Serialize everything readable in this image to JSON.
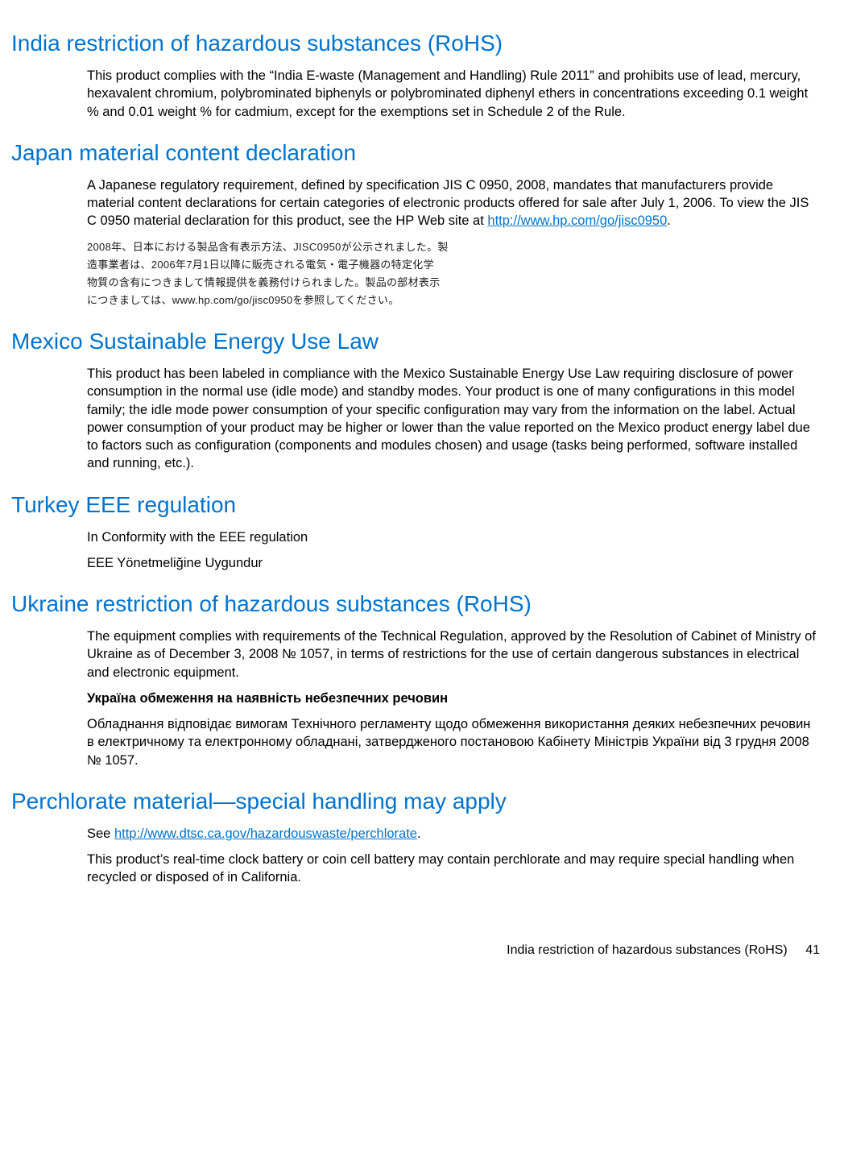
{
  "colors": {
    "heading": "#0073cf",
    "link": "#0073cf",
    "text": "#000000",
    "background": "#ffffff"
  },
  "typography": {
    "body_font": "Arial",
    "heading_fontsize": 28,
    "body_fontsize": 16.5,
    "japanese_fontsize": 13
  },
  "sections": {
    "india": {
      "heading": "India restriction of hazardous substances (RoHS)",
      "body": "This product complies with the “India E-waste (Management and Handling) Rule 2011” and prohibits use of lead, mercury, hexavalent chromium, polybrominated biphenyls or polybrominated diphenyl ethers in concentrations exceeding 0.1 weight % and 0.01 weight % for cadmium, except for the exemptions set in Schedule 2 of the Rule."
    },
    "japan": {
      "heading": "Japan material content declaration",
      "body_pre": "A Japanese regulatory requirement, defined by specification JIS C 0950, 2008, mandates that manufacturers provide material content declarations for certain categories of electronic products offered for sale after July 1, 2006. To view the JIS C 0950 material declaration for this product, see the HP Web site at ",
      "link_text": "http://www.hp.com/go/jisc0950",
      "body_post": ".",
      "jp_line1": "2008年、日本における製品含有表示方法、JISC0950が公示されました。製",
      "jp_line2": "造事業者は、2006年7月1日以降に販売される電気・電子機器の特定化学",
      "jp_line3": "物質の含有につきまして情報提供を義務付けられました。製品の部材表示",
      "jp_line4": "につきましては、www.hp.com/go/jisc0950を参照してください。"
    },
    "mexico": {
      "heading": "Mexico Sustainable Energy Use Law",
      "body": "This product has been labeled in compliance with the Mexico Sustainable Energy Use Law requiring disclosure of power consumption in the normal use (idle mode) and standby modes. Your product is one of many configurations in this model family; the idle mode power consumption of your specific configuration may vary from the information on the label. Actual power consumption of your product may be higher or lower than the value reported on the Mexico product energy label due to factors such as configuration (components and modules chosen) and usage (tasks being performed, software installed and running, etc.)."
    },
    "turkey": {
      "heading": "Turkey EEE regulation",
      "body1": "In Conformity with the EEE regulation",
      "body2": "EEE Yönetmeliğine Uygundur"
    },
    "ukraine": {
      "heading": "Ukraine restriction of hazardous substances (RoHS)",
      "body1": "The equipment complies with requirements of the Technical Regulation, approved by the Resolution of Cabinet of Ministry of Ukraine as of December 3, 2008 № 1057, in terms of restrictions for the use of certain dangerous substances in electrical and electronic equipment.",
      "body2_bold": "Україна обмеження на наявність небезпечних речовин",
      "body3": "Обладнання відповідає вимогам Технічного регламенту щодо обмеження використання деяких небезпечних речовин в електричному та електронному обладнані, затвердженого постановою Кабінету Міністрів України від 3 грудня 2008 № 1057."
    },
    "perchlorate": {
      "heading": "Perchlorate material—special handling may apply",
      "body1_pre": "See ",
      "link_text": "http://www.dtsc.ca.gov/hazardouswaste/perchlorate",
      "body1_post": ".",
      "body2": "This product’s real-time clock battery or coin cell battery may contain perchlorate and may require special handling when recycled or disposed of in California."
    }
  },
  "footer": {
    "running_title": "India restriction of hazardous substances (RoHS)",
    "page_number": "41"
  }
}
